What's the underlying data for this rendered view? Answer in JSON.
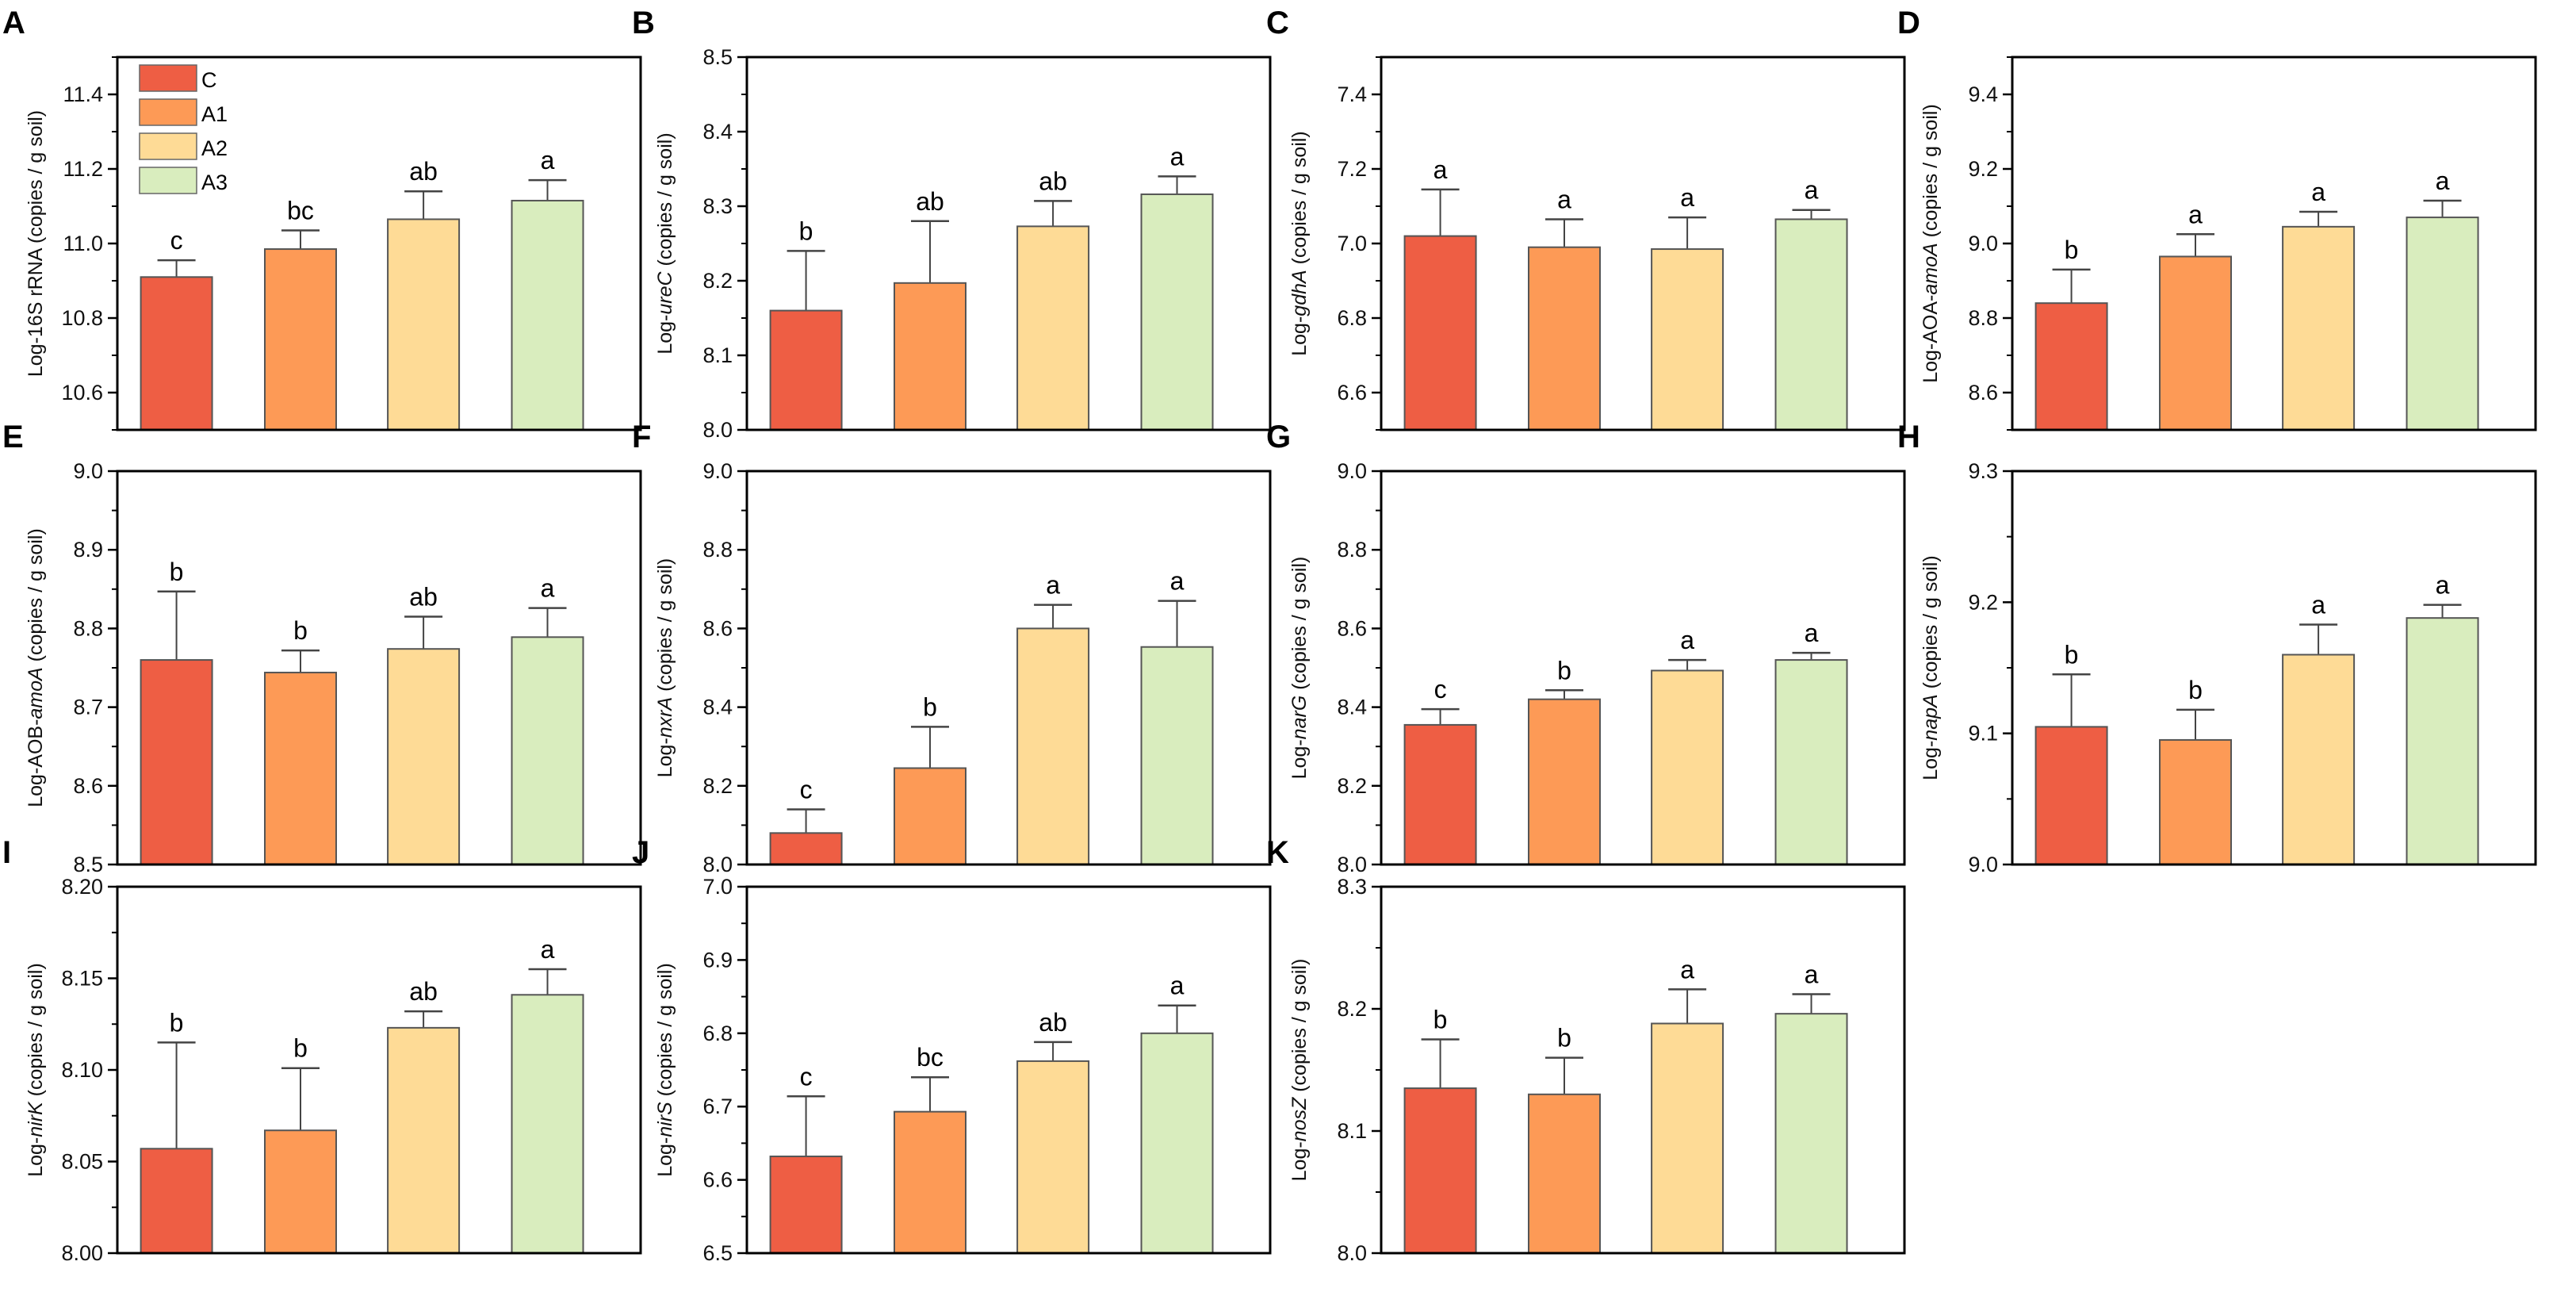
{
  "colors": {
    "C": "#EE5E44",
    "A1": "#FD9A56",
    "A2": "#FEDB96",
    "A3": "#D9EDBE",
    "bar_stroke": "#555555"
  },
  "legend": [
    "C",
    "A1",
    "A2",
    "A3"
  ],
  "chart_data": [
    {
      "type": "bar",
      "panel": "A",
      "ylabel_pre": "Log-16S rRNA",
      "ylabel_italic": "",
      "ylabel_post": " (copies / g soil)",
      "ylim": [
        10.5,
        11.5
      ],
      "ticks": [
        "10.6",
        "10.8",
        "11.0",
        "11.2",
        "11.4"
      ],
      "minor_step": 0.1,
      "categories": [
        "C",
        "A1",
        "A2",
        "A3"
      ],
      "values": [
        10.91,
        10.985,
        11.065,
        11.115
      ],
      "error_upper": [
        10.955,
        11.035,
        11.14,
        11.17
      ],
      "significance": [
        "c",
        "bc",
        "ab",
        "a"
      ],
      "legend": true
    },
    {
      "type": "bar",
      "panel": "B",
      "ylabel_pre": "Log-",
      "ylabel_italic": "ureC",
      "ylabel_post": " (copies / g soil)",
      "ylim": [
        8.0,
        8.5
      ],
      "ticks": [
        "8.0",
        "8.1",
        "8.2",
        "8.3",
        "8.4",
        "8.5"
      ],
      "minor_step": 0.05,
      "categories": [
        "C",
        "A1",
        "A2",
        "A3"
      ],
      "values": [
        8.16,
        8.197,
        8.273,
        8.316
      ],
      "error_upper": [
        8.24,
        8.28,
        8.307,
        8.34
      ],
      "significance": [
        "b",
        "ab",
        "ab",
        "a"
      ]
    },
    {
      "type": "bar",
      "panel": "C",
      "ylabel_pre": "Log-",
      "ylabel_italic": "gdhA",
      "ylabel_post": " (copies / g soil)",
      "ylim": [
        6.5,
        7.5
      ],
      "ticks": [
        "6.6",
        "6.8",
        "7.0",
        "7.2",
        "7.4"
      ],
      "minor_step": 0.1,
      "categories": [
        "C",
        "A1",
        "A2",
        "A3"
      ],
      "values": [
        7.02,
        6.99,
        6.985,
        7.065
      ],
      "error_upper": [
        7.145,
        7.065,
        7.07,
        7.09
      ],
      "significance": [
        "a",
        "a",
        "a",
        "a"
      ]
    },
    {
      "type": "bar",
      "panel": "D",
      "ylabel_pre": "Log-AOA-",
      "ylabel_italic": "amoA",
      "ylabel_post": " (copies / g soil)",
      "ylim": [
        8.5,
        9.5
      ],
      "ticks": [
        "8.6",
        "8.8",
        "9.0",
        "9.2",
        "9.4"
      ],
      "minor_step": 0.1,
      "categories": [
        "C",
        "A1",
        "A2",
        "A3"
      ],
      "values": [
        8.84,
        8.965,
        9.045,
        9.07
      ],
      "error_upper": [
        8.93,
        9.025,
        9.085,
        9.115
      ],
      "significance": [
        "b",
        "a",
        "a",
        "a"
      ]
    },
    {
      "type": "bar",
      "panel": "E",
      "ylabel_pre": "Log-AOB-",
      "ylabel_italic": "amoA",
      "ylabel_post": " (copies / g soil)",
      "ylim": [
        8.5,
        9.0
      ],
      "ticks": [
        "8.5",
        "8.6",
        "8.7",
        "8.8",
        "8.9",
        "9.0"
      ],
      "minor_step": 0.05,
      "categories": [
        "C",
        "A1",
        "A2",
        "A3"
      ],
      "values": [
        8.76,
        8.744,
        8.774,
        8.789
      ],
      "error_upper": [
        8.847,
        8.772,
        8.815,
        8.826
      ],
      "significance": [
        "b",
        "b",
        "ab",
        "a"
      ]
    },
    {
      "type": "bar",
      "panel": "F",
      "ylabel_pre": "Log-",
      "ylabel_italic": "nxrA",
      "ylabel_post": " (copies / g soil)",
      "ylim": [
        8.0,
        9.0
      ],
      "ticks": [
        "8.0",
        "8.2",
        "8.4",
        "8.6",
        "8.8",
        "9.0"
      ],
      "minor_step": 0.1,
      "categories": [
        "C",
        "A1",
        "A2",
        "A3"
      ],
      "values": [
        8.08,
        8.245,
        8.6,
        8.553
      ],
      "error_upper": [
        8.14,
        8.35,
        8.66,
        8.67
      ],
      "significance": [
        "c",
        "b",
        "a",
        "a"
      ]
    },
    {
      "type": "bar",
      "panel": "G",
      "ylabel_pre": "Log-",
      "ylabel_italic": "narG",
      "ylabel_post": " (copies / g soil)",
      "ylim": [
        8.0,
        9.0
      ],
      "ticks": [
        "8.0",
        "8.2",
        "8.4",
        "8.6",
        "8.8",
        "9.0"
      ],
      "minor_step": 0.1,
      "categories": [
        "C",
        "A1",
        "A2",
        "A3"
      ],
      "values": [
        8.355,
        8.42,
        8.493,
        8.52
      ],
      "error_upper": [
        8.395,
        8.443,
        8.52,
        8.538
      ],
      "significance": [
        "c",
        "b",
        "a",
        "a"
      ]
    },
    {
      "type": "bar",
      "panel": "H",
      "ylabel_pre": "Log-",
      "ylabel_italic": "napA",
      "ylabel_post": " (copies / g soil)",
      "ylim": [
        9.0,
        9.3
      ],
      "ticks": [
        "9.0",
        "9.1",
        "9.2",
        "9.3"
      ],
      "minor_step": 0.05,
      "categories": [
        "C",
        "A1",
        "A2",
        "A3"
      ],
      "values": [
        9.105,
        9.095,
        9.16,
        9.188
      ],
      "error_upper": [
        9.145,
        9.118,
        9.183,
        9.198
      ],
      "significance": [
        "b",
        "b",
        "a",
        "a"
      ]
    },
    {
      "type": "bar",
      "panel": "I",
      "ylabel_pre": "Log-",
      "ylabel_italic": "nirK",
      "ylabel_post": " (copies / g soil)",
      "ylim": [
        8.0,
        8.2
      ],
      "ticks": [
        "8.00",
        "8.05",
        "8.10",
        "8.15",
        "8.20"
      ],
      "minor_step": 0.025,
      "categories": [
        "C",
        "A1",
        "A2",
        "A3"
      ],
      "values": [
        8.057,
        8.067,
        8.123,
        8.141
      ],
      "error_upper": [
        8.115,
        8.101,
        8.132,
        8.155
      ],
      "significance": [
        "b",
        "b",
        "ab",
        "a"
      ]
    },
    {
      "type": "bar",
      "panel": "J",
      "ylabel_pre": "Log-",
      "ylabel_italic": "nirS",
      "ylabel_post": " (copies / g soil)",
      "ylim": [
        6.5,
        7.0
      ],
      "ticks": [
        "6.5",
        "6.6",
        "6.7",
        "6.8",
        "6.9",
        "7.0"
      ],
      "minor_step": 0.05,
      "categories": [
        "C",
        "A1",
        "A2",
        "A3"
      ],
      "values": [
        6.632,
        6.693,
        6.762,
        6.8
      ],
      "error_upper": [
        6.714,
        6.74,
        6.788,
        6.838
      ],
      "significance": [
        "c",
        "bc",
        "ab",
        "a"
      ]
    },
    {
      "type": "bar",
      "panel": "K",
      "ylabel_pre": "Log-",
      "ylabel_italic": "nosZ",
      "ylabel_post": " (copies / g soil)",
      "ylim": [
        8.0,
        8.3
      ],
      "ticks": [
        "8.0",
        "8.1",
        "8.2",
        "8.3"
      ],
      "minor_step": 0.05,
      "categories": [
        "C",
        "A1",
        "A2",
        "A3"
      ],
      "values": [
        8.135,
        8.13,
        8.188,
        8.196
      ],
      "error_upper": [
        8.175,
        8.16,
        8.216,
        8.212
      ],
      "significance": [
        "b",
        "b",
        "a",
        "a"
      ]
    }
  ]
}
